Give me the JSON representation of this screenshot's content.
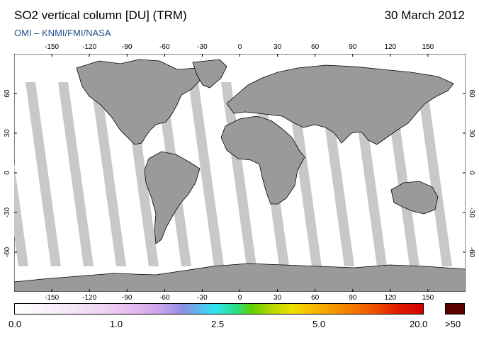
{
  "header": {
    "title": "SO2 vertical column [DU] (TRM)",
    "date": "30 March 2012",
    "subtitle": "OMI  –  KNMI/FMI/NASA"
  },
  "axes": {
    "lon_ticks": [
      "-150",
      "-120",
      "-90",
      "-60",
      "-30",
      "0",
      "30",
      "60",
      "90",
      "120",
      "150"
    ],
    "lon_values": [
      -150,
      -120,
      -90,
      -60,
      -30,
      0,
      30,
      60,
      90,
      120,
      150
    ],
    "lat_ticks": [
      "60",
      "30",
      "0",
      "-30",
      "-60"
    ],
    "lat_values": [
      60,
      30,
      0,
      -30,
      -60
    ],
    "lon_range": [
      -180,
      180
    ],
    "lat_range": [
      -90,
      90
    ]
  },
  "colorbar": {
    "labels": [
      "0.0",
      "1.0",
      "2.5",
      "5.0",
      "20.0"
    ],
    "overflow_label": ">50",
    "overflow_color": "#5a0000"
  },
  "colors": {
    "land": "#9a9a9a",
    "swath_gap": "#c8c8c8",
    "coastline": "#000000",
    "ocean": "#ffffff",
    "subtitle": "#1f4e8c"
  }
}
